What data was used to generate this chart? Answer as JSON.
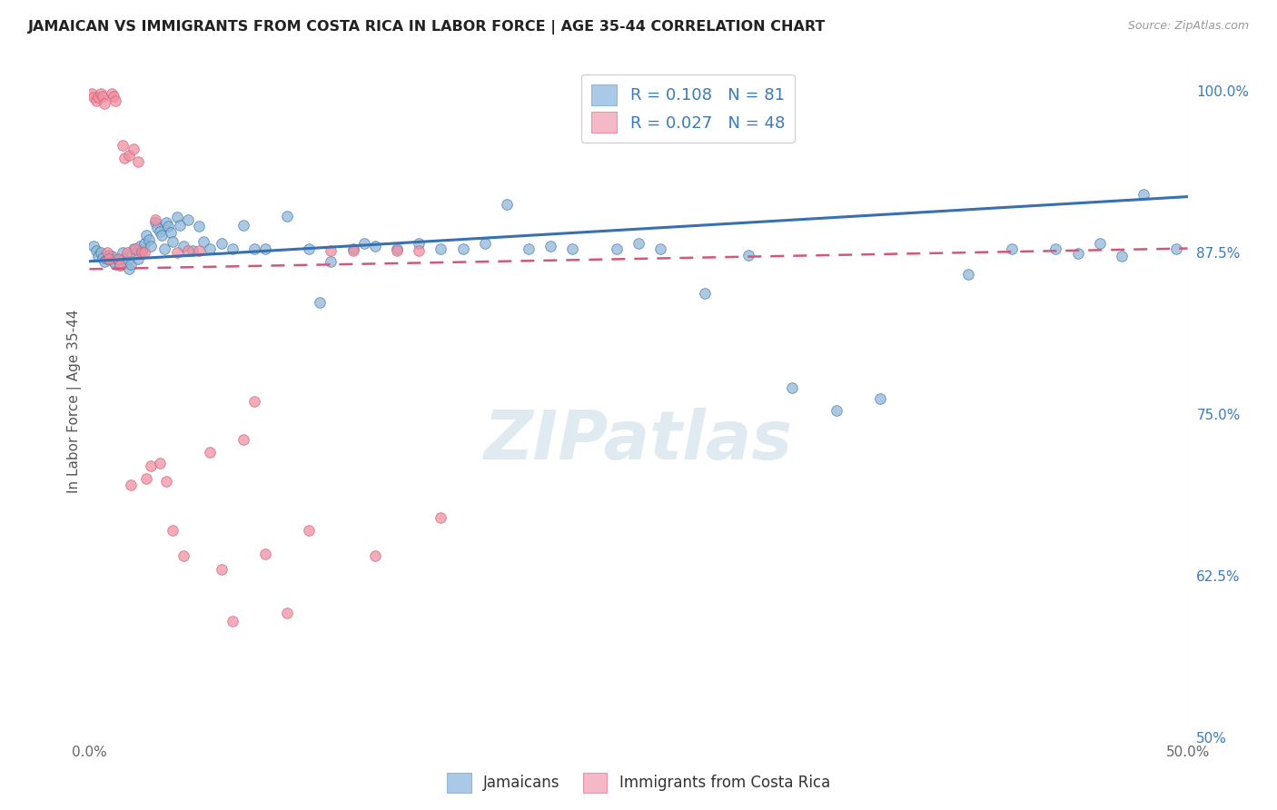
{
  "title": "JAMAICAN VS IMMIGRANTS FROM COSTA RICA IN LABOR FORCE | AGE 35-44 CORRELATION CHART",
  "source": "Source: ZipAtlas.com",
  "ylabel": "In Labor Force | Age 35-44",
  "xlim": [
    0.0,
    0.5
  ],
  "ylim": [
    0.5,
    1.02
  ],
  "xtick_vals": [
    0.0,
    0.1,
    0.2,
    0.3,
    0.4,
    0.5
  ],
  "xtick_labels": [
    "0.0%",
    "",
    "",
    "",
    "",
    "50.0%"
  ],
  "ytick_positions_right": [
    0.5,
    0.625,
    0.75,
    0.875,
    1.0
  ],
  "ytick_labels_right": [
    "50%",
    "62.5%",
    "75.0%",
    "87.5%",
    "100.0%"
  ],
  "legend_blue_color": "#aac8e8",
  "legend_pink_color": "#f5b8c8",
  "scatter_blue_color": "#90b8d8",
  "scatter_pink_color": "#f090a0",
  "line_blue_color": "#3870b0",
  "line_pink_color": "#d05878",
  "watermark": "ZIPatlas",
  "watermark_color": "#ccdde8",
  "background_color": "#ffffff",
  "blue_x": [
    0.002,
    0.003,
    0.004,
    0.005,
    0.006,
    0.007,
    0.008,
    0.009,
    0.01,
    0.011,
    0.012,
    0.013,
    0.014,
    0.015,
    0.016,
    0.017,
    0.018,
    0.019,
    0.02,
    0.021,
    0.022,
    0.023,
    0.024,
    0.025,
    0.026,
    0.027,
    0.028,
    0.03,
    0.031,
    0.032,
    0.033,
    0.034,
    0.035,
    0.036,
    0.037,
    0.038,
    0.04,
    0.041,
    0.043,
    0.045,
    0.047,
    0.05,
    0.052,
    0.055,
    0.06,
    0.065,
    0.07,
    0.075,
    0.08,
    0.09,
    0.1,
    0.105,
    0.11,
    0.12,
    0.125,
    0.13,
    0.14,
    0.15,
    0.16,
    0.17,
    0.18,
    0.19,
    0.2,
    0.21,
    0.22,
    0.24,
    0.25,
    0.26,
    0.28,
    0.3,
    0.32,
    0.34,
    0.36,
    0.4,
    0.42,
    0.44,
    0.45,
    0.46,
    0.47,
    0.48,
    0.495
  ],
  "blue_y": [
    0.88,
    0.876,
    0.872,
    0.875,
    0.871,
    0.868,
    0.87,
    0.873,
    0.872,
    0.868,
    0.866,
    0.869,
    0.865,
    0.875,
    0.87,
    0.868,
    0.862,
    0.866,
    0.878,
    0.874,
    0.87,
    0.88,
    0.876,
    0.882,
    0.888,
    0.885,
    0.88,
    0.898,
    0.894,
    0.891,
    0.888,
    0.878,
    0.898,
    0.895,
    0.89,
    0.883,
    0.902,
    0.896,
    0.88,
    0.9,
    0.876,
    0.895,
    0.883,
    0.878,
    0.882,
    0.878,
    0.896,
    0.878,
    0.878,
    0.903,
    0.878,
    0.836,
    0.868,
    0.878,
    0.882,
    0.88,
    0.878,
    0.882,
    0.878,
    0.878,
    0.882,
    0.912,
    0.878,
    0.88,
    0.878,
    0.878,
    0.882,
    0.878,
    0.843,
    0.873,
    0.77,
    0.753,
    0.762,
    0.858,
    0.878,
    0.878,
    0.874,
    0.882,
    0.872,
    0.92,
    0.878
  ],
  "pink_x": [
    0.001,
    0.002,
    0.003,
    0.004,
    0.005,
    0.006,
    0.007,
    0.008,
    0.009,
    0.01,
    0.011,
    0.012,
    0.013,
    0.014,
    0.015,
    0.016,
    0.017,
    0.018,
    0.019,
    0.02,
    0.021,
    0.022,
    0.024,
    0.025,
    0.026,
    0.028,
    0.03,
    0.032,
    0.035,
    0.038,
    0.04,
    0.043,
    0.045,
    0.05,
    0.055,
    0.06,
    0.065,
    0.07,
    0.075,
    0.08,
    0.09,
    0.1,
    0.11,
    0.12,
    0.13,
    0.14,
    0.15,
    0.16
  ],
  "pink_y": [
    0.998,
    0.995,
    0.992,
    0.995,
    0.998,
    0.996,
    0.99,
    0.875,
    0.87,
    0.998,
    0.996,
    0.992,
    0.87,
    0.865,
    0.958,
    0.948,
    0.875,
    0.95,
    0.695,
    0.955,
    0.878,
    0.945,
    0.875,
    0.875,
    0.7,
    0.71,
    0.9,
    0.712,
    0.698,
    0.66,
    0.875,
    0.64,
    0.876,
    0.876,
    0.72,
    0.63,
    0.59,
    0.73,
    0.76,
    0.642,
    0.596,
    0.66,
    0.876,
    0.876,
    0.64,
    0.876,
    0.876,
    0.67
  ]
}
